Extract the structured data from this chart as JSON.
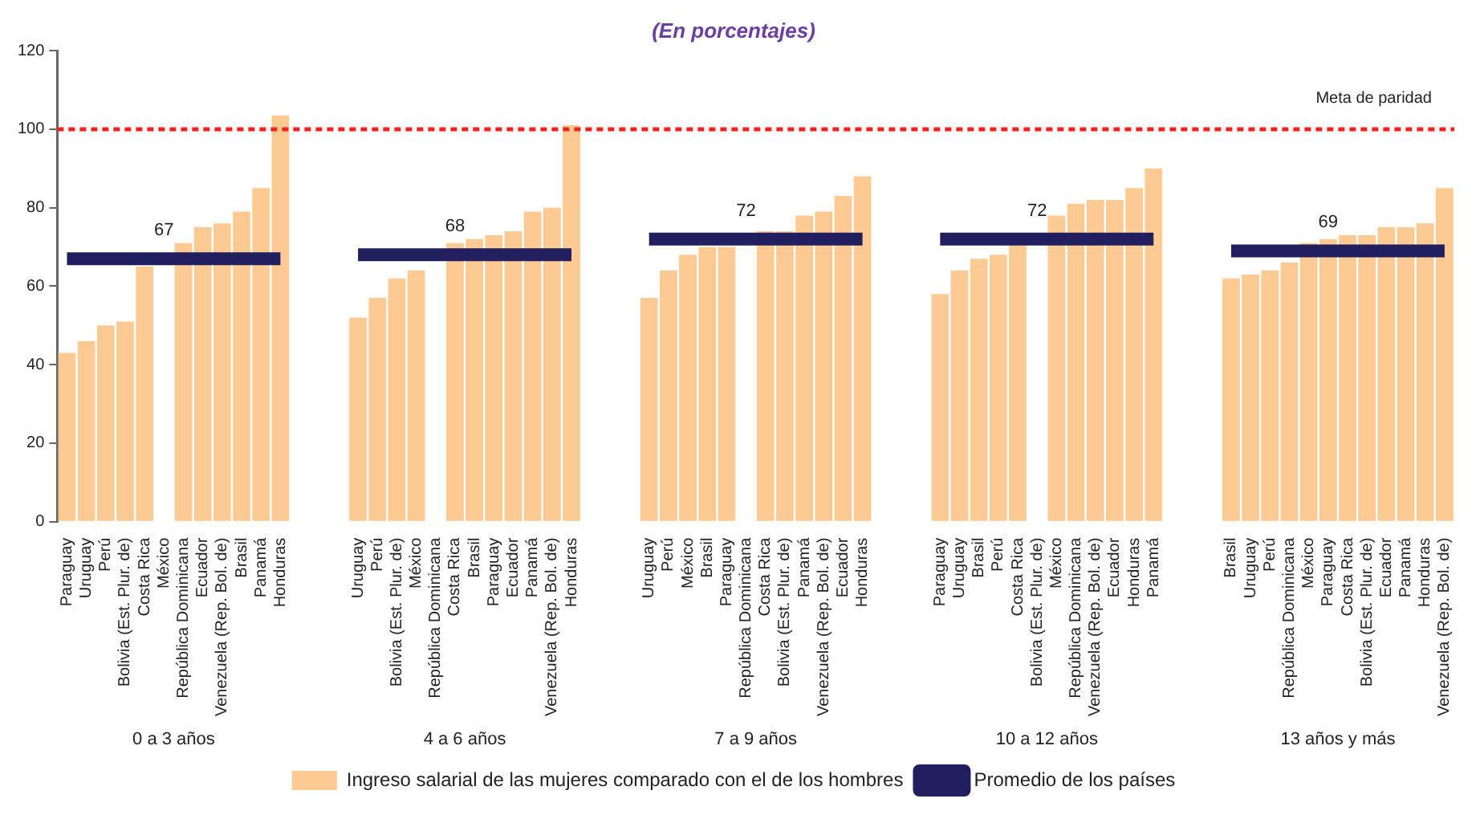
{
  "chart_data": {
    "type": "bar",
    "title": "(En porcentajes)",
    "categories": [
      "Paraguay",
      "Uruguay",
      "Perú",
      "Bolivia (Est. Plur. de)",
      "Costa Rica",
      "México",
      "República Dominicana",
      "Ecuador",
      "Venezuela (Rep. Bol. de)",
      "Brasil",
      "Panamá",
      "Honduras",
      null,
      null,
      null,
      "Uruguay",
      "Perú",
      "Bolivia (Est. Plur. de)",
      "México",
      "República Dominicana",
      "Costa Rica",
      "Brasil",
      "Paraguay",
      "Ecuador",
      "Panamá",
      "Venezuela (Rep. Bol. de)",
      "Honduras",
      null,
      null,
      null,
      "Uruguay",
      "Perú",
      "México",
      "Brasil",
      "Paraguay",
      "República Dominicana",
      "Costa Rica",
      "Bolivia (Est. Plur. de)",
      "Panamá",
      "Venezuela (Rep. Bol. de)",
      "Ecuador",
      "Honduras",
      null,
      null,
      null,
      "Paraguay",
      "Uruguay",
      "Brasil",
      "Perú",
      "Costa Rica",
      "Bolivia (Est. Plur. de)",
      "México",
      "República Dominicana",
      "Venezuela (Rep. Bol. de)",
      "Ecuador",
      "Honduras",
      "Panamá",
      null,
      null,
      null,
      "Brasil",
      "Uruguay",
      "Perú",
      "República Dominicana",
      "México",
      "Paraguay",
      "Costa Rica",
      "Bolivia (Est. Plur. de)",
      "Ecuador",
      "Panamá",
      "Honduras",
      "Venezuela (Rep. Bol. de)"
    ],
    "series": [
      {
        "name": "Ingreso salarial de las mujeres comparado con el de los hombres",
        "color": "#fdca94",
        "values": [
          43,
          46,
          50,
          51,
          65,
          null,
          71,
          75,
          76,
          79,
          85,
          103.5,
          null,
          null,
          null,
          52,
          57,
          62,
          64,
          null,
          71,
          72,
          73,
          74,
          79,
          80,
          101,
          null,
          null,
          null,
          57,
          64,
          68,
          70,
          70,
          null,
          74,
          74,
          78,
          79,
          83,
          88,
          null,
          null,
          null,
          58,
          64,
          67,
          68,
          71,
          null,
          78,
          81,
          82,
          82,
          85,
          90,
          null,
          null,
          null,
          62,
          63,
          64,
          66,
          71,
          72,
          73,
          73,
          75,
          75,
          76,
          85
        ]
      },
      {
        "name": "Promedio de los países",
        "type": "line",
        "color": "#221f5e",
        "marker": "none",
        "line_style": "solid",
        "values": [
          67,
          67,
          67,
          67,
          67,
          67,
          67,
          67,
          67,
          67,
          67,
          67,
          null,
          null,
          null,
          68,
          68,
          68,
          68,
          68,
          68,
          68,
          68,
          68,
          68,
          68,
          68,
          null,
          null,
          null,
          72,
          72,
          72,
          72,
          72,
          72,
          72,
          72,
          72,
          72,
          72,
          72,
          null,
          null,
          null,
          72,
          72,
          72,
          72,
          72,
          72,
          72,
          72,
          72,
          72,
          72,
          72,
          null,
          null,
          null,
          69,
          69,
          69,
          69,
          69,
          69,
          69,
          69,
          69,
          69,
          69,
          69
        ],
        "value_labels": [
          null,
          null,
          null,
          null,
          null,
          "67",
          null,
          null,
          null,
          null,
          null,
          null,
          null,
          null,
          null,
          null,
          null,
          null,
          null,
          null,
          "68",
          null,
          null,
          null,
          null,
          null,
          null,
          null,
          null,
          null,
          null,
          null,
          null,
          null,
          null,
          "72",
          null,
          null,
          null,
          null,
          null,
          null,
          null,
          null,
          null,
          null,
          null,
          null,
          null,
          null,
          "72",
          null,
          null,
          null,
          null,
          null,
          null,
          null,
          null,
          null,
          null,
          null,
          null,
          null,
          null,
          "69",
          null,
          null,
          null,
          null,
          null,
          null
        ]
      }
    ],
    "ylim": [
      0,
      120
    ],
    "yticks": [
      0,
      20,
      40,
      60,
      80,
      100,
      120
    ],
    "grid": false,
    "legend": "bottom",
    "ref_lines": [
      {
        "axis": "y",
        "value": 100,
        "label": "Meta de paridad",
        "color": "#ff2020",
        "line_style": "dotted"
      }
    ],
    "annotations": [
      "0 a 3 años",
      "4 a 6 años",
      "7 a 9 años",
      "10 a 12 años",
      "13 años y más"
    ]
  }
}
